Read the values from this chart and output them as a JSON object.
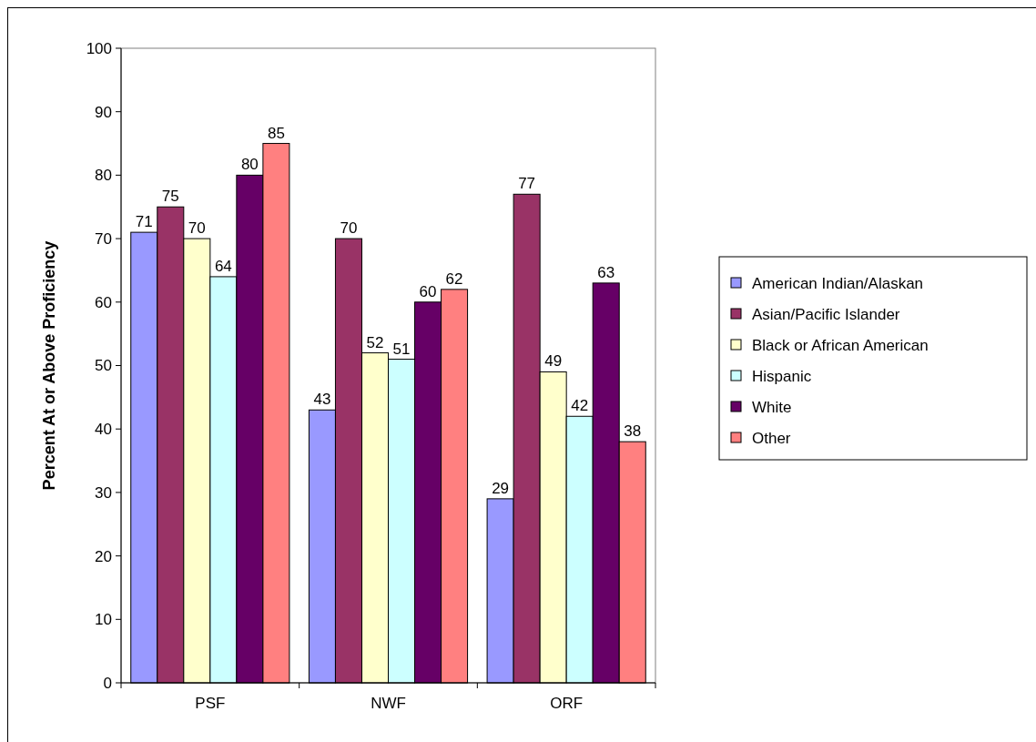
{
  "chart_data": {
    "type": "bar",
    "ylabel": "Percent At or Above Proficiency",
    "categories": [
      "PSF",
      "NWF",
      "ORF"
    ],
    "series": [
      {
        "name": "American Indian/Alaskan",
        "color": "#9999ff",
        "values": [
          71,
          43,
          29
        ]
      },
      {
        "name": "Asian/Pacific Islander",
        "color": "#993366",
        "values": [
          75,
          70,
          77
        ]
      },
      {
        "name": "Black or African American",
        "color": "#ffffcc",
        "values": [
          70,
          52,
          49
        ]
      },
      {
        "name": "Hispanic",
        "color": "#ccffff",
        "values": [
          64,
          51,
          42
        ]
      },
      {
        "name": "White",
        "color": "#660066",
        "values": [
          80,
          60,
          63
        ]
      },
      {
        "name": "Other",
        "color": "#ff8080",
        "values": [
          85,
          62,
          38
        ]
      }
    ],
    "ylim": [
      0,
      100
    ],
    "yticks": [
      0,
      10,
      20,
      30,
      40,
      50,
      60,
      70,
      80,
      90,
      100
    ],
    "data_labels": true,
    "legend": "right",
    "grid": false
  }
}
